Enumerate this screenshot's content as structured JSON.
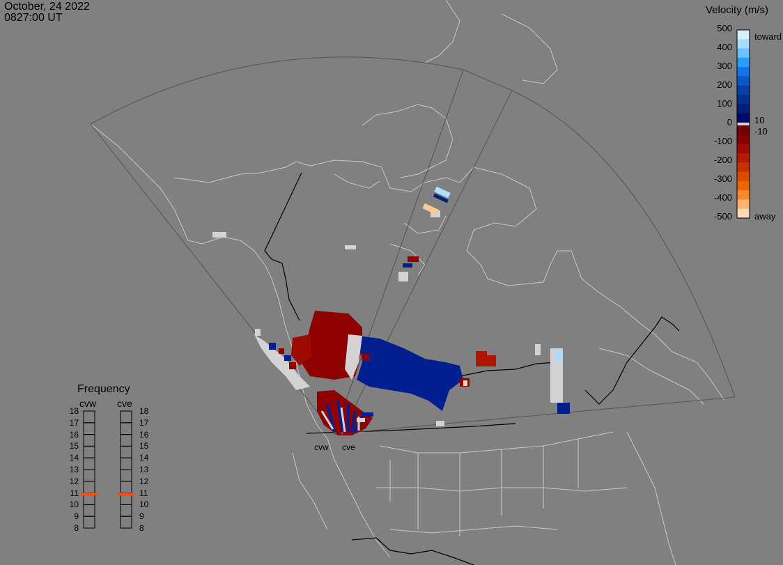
{
  "header": {
    "date": "October, 24 2022",
    "time": "0827:00 UT"
  },
  "velocity_legend": {
    "title": "Velocity (m/s)",
    "scale_labels": [
      "500",
      "400",
      "300",
      "200",
      "100",
      "0",
      "-100",
      "-200",
      "-300",
      "-400",
      "-500"
    ],
    "threshold_positive": "10",
    "threshold_negative": "-10",
    "toward_label": "toward",
    "away_label": "away",
    "toward_colors": [
      "#d8f0ff",
      "#a6dcff",
      "#66c2ff",
      "#2a9df4",
      "#1473e6",
      "#0a58c8",
      "#063fa8",
      "#032e8f",
      "#011f78",
      "#000a66"
    ],
    "away_colors": [
      "#6e0000",
      "#850000",
      "#9e0a00",
      "#b31b00",
      "#c83000",
      "#db4a00",
      "#ec6600",
      "#f58a2c",
      "#fbb273",
      "#ffd9b8"
    ]
  },
  "frequency_panel": {
    "title": "Frequency",
    "radars": [
      "cvw",
      "cve"
    ],
    "mhz_labels": [
      "18",
      "17",
      "16",
      "15",
      "14",
      "13",
      "12",
      "11",
      "10",
      "9",
      "8"
    ],
    "active_mhz": [
      10.9,
      10.9
    ],
    "indicator_color": "#ff4a0a"
  },
  "radar_sites": [
    "cvw",
    "cve"
  ],
  "colors": {
    "background": "#808080",
    "coastline": "#c8c8c8",
    "fov_line": "#555555",
    "border_line": "#000000",
    "ground_scatter": "#d3d3d3"
  }
}
